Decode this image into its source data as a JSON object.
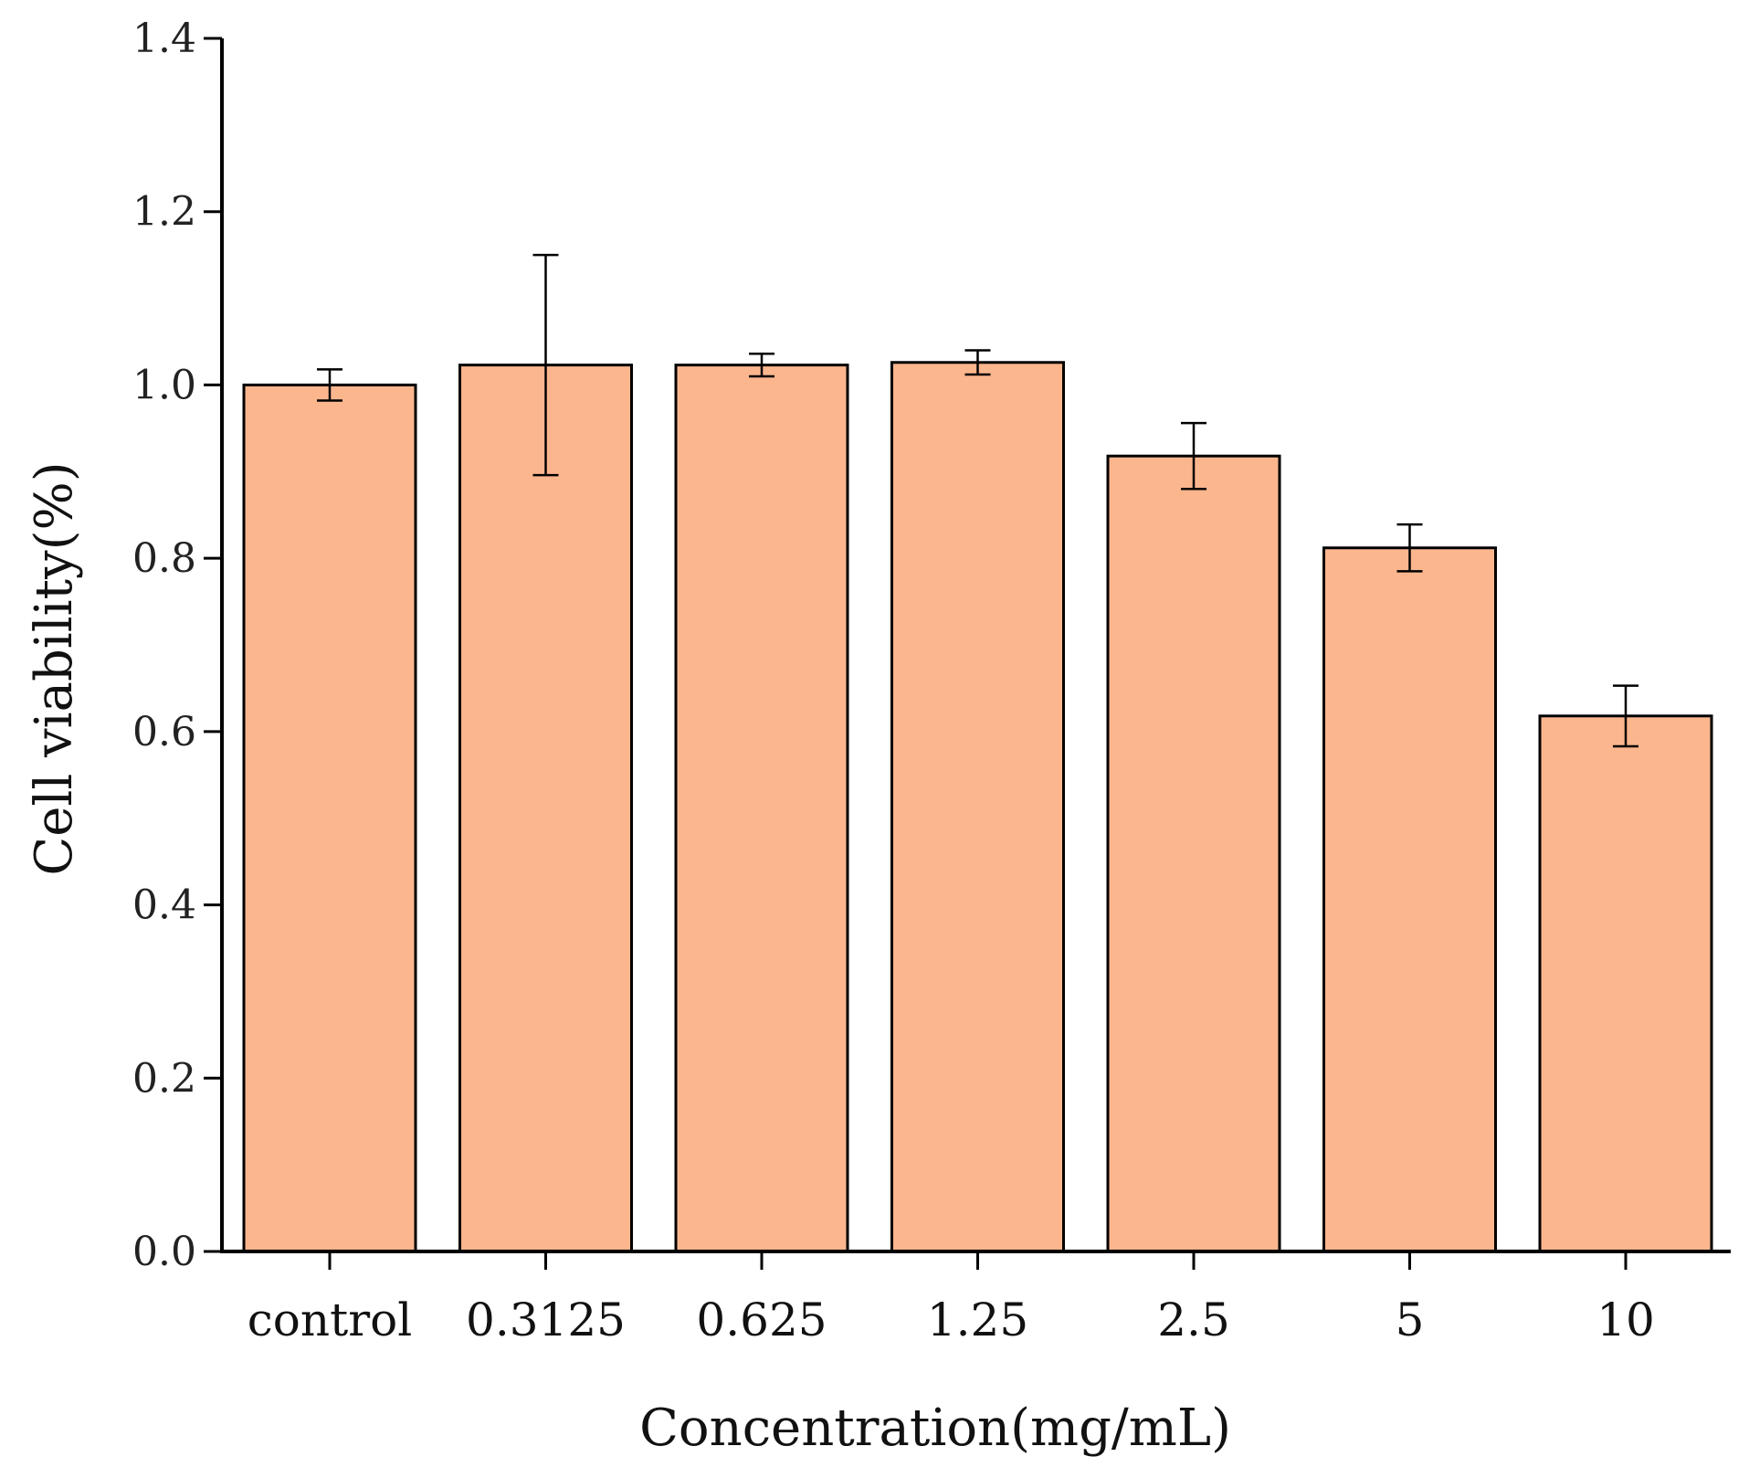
{
  "chart_data": {
    "type": "bar",
    "categories": [
      "control",
      "0.3125",
      "0.625",
      "1.25",
      "2.5",
      "5",
      "10"
    ],
    "values": [
      1.0,
      1.023,
      1.023,
      1.026,
      0.918,
      0.812,
      0.618
    ],
    "errors": [
      0.018,
      0.127,
      0.013,
      0.014,
      0.038,
      0.027,
      0.035
    ],
    "xlabel": "Concentration(mg/mL)",
    "ylabel": "Cell viability(%)",
    "ylim": [
      0,
      1.4
    ],
    "yticks": [
      0.0,
      0.2,
      0.4,
      0.6,
      0.8,
      1.0,
      1.2,
      1.4
    ],
    "ytick_labels": [
      "0.0",
      "0.2",
      "0.4",
      "0.6",
      "0.8",
      "1.0",
      "1.2",
      "1.4"
    ],
    "grid": false,
    "colors": {
      "bar": "#fbb68e",
      "bar_edge": "#000000",
      "axis": "#000000",
      "error_bar": "#000000"
    }
  }
}
